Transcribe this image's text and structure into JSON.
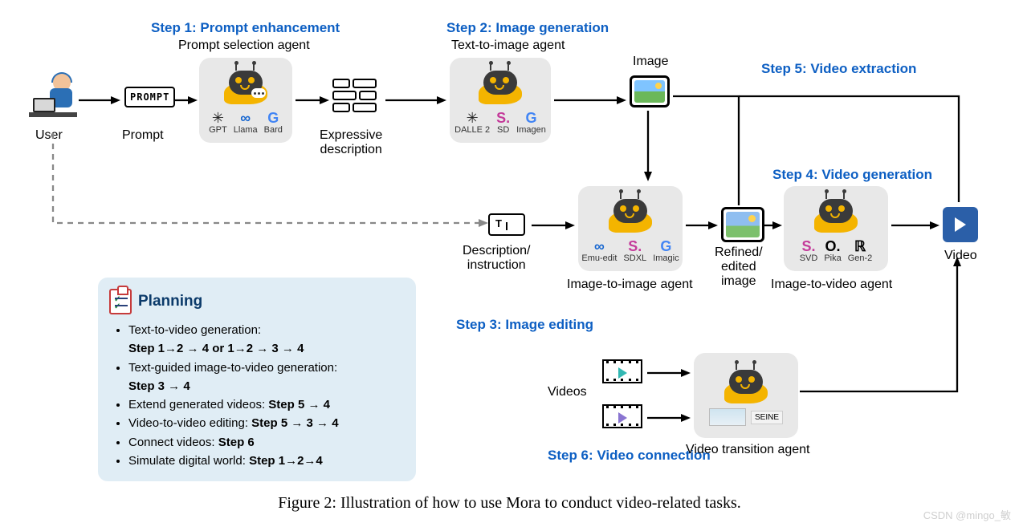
{
  "styling": {
    "step_title_color": "#0d5fc3",
    "step_title_fontsize": 17,
    "label_fontsize": 16,
    "agent_box_bg": "#e8e8e8",
    "agent_box_radius": 14,
    "planning_bg": "#e0edf5",
    "planning_title_color": "#0b3a6a",
    "arrow_color": "#000000",
    "arrow_width": 2.3,
    "background_color": "#ffffff",
    "bot_head_color": "#3a3a3a",
    "bot_accent_color": "#f4b400",
    "video_play_bg": "#2b5fa8"
  },
  "steps": {
    "s1": "Step 1: Prompt enhancement",
    "s2": "Step 2: Image generation",
    "s3": "Step 3: Image editing",
    "s4": "Step 4: Video generation",
    "s5": "Step 5: Video extraction",
    "s6": "Step 6: Video connection"
  },
  "labels": {
    "user": "User",
    "prompt": "Prompt",
    "prompt_box": "PROMPT",
    "prompt_agent": "Prompt selection agent",
    "expr_desc": "Expressive\ndescription",
    "t2i_agent": "Text-to-image agent",
    "image": "Image",
    "desc_inst": "Description/\ninstruction",
    "i2i_agent": "Image-to-image agent",
    "refined": "Refined/\nedited\nimage",
    "i2v_agent": "Image-to-video agent",
    "video": "Video",
    "videos": "Videos",
    "transition_agent": "Video transition agent"
  },
  "agents": {
    "prompt_models": [
      {
        "name": "GPT",
        "glyph": "✳"
      },
      {
        "name": "Llama",
        "glyph": "∞"
      },
      {
        "name": "Bard",
        "glyph": "G"
      }
    ],
    "t2i_models": [
      {
        "name": "DALLE 2",
        "glyph": "✳"
      },
      {
        "name": "SD",
        "glyph": "S."
      },
      {
        "name": "Imagen",
        "glyph": "G"
      }
    ],
    "i2i_models": [
      {
        "name": "Emu-edit",
        "glyph": "∞"
      },
      {
        "name": "SDXL",
        "glyph": "S."
      },
      {
        "name": "Imagic",
        "glyph": "G"
      }
    ],
    "i2v_models": [
      {
        "name": "SVD",
        "glyph": "S."
      },
      {
        "name": "Pika",
        "glyph": "O."
      },
      {
        "name": "Gen-2",
        "glyph": "ℝ"
      }
    ],
    "transition_model": "SEINE"
  },
  "planning": {
    "title": "Planning",
    "items": [
      {
        "text": "Text-to-video generation:",
        "bold": "Step 1→2 → 4  or  1→2 → 3 → 4"
      },
      {
        "text": "Text-guided image-to-video generation:",
        "bold": "Step 3 → 4"
      },
      {
        "text": "Extend generated videos:  ",
        "bold": "Step 5 → 4",
        "inline": true
      },
      {
        "text": "Video-to-video editing:  ",
        "bold": "Step 5 → 3 → 4",
        "inline": true
      },
      {
        "text": "Connect videos: ",
        "bold": "Step 6",
        "inline": true
      },
      {
        "text": "Simulate digital world: ",
        "bold": "Step 1→2→4",
        "inline": true
      }
    ]
  },
  "caption": "Figure 2: Illustration of how to use Mora to conduct video-related tasks.",
  "watermark": "CSDN @mingo_敏"
}
